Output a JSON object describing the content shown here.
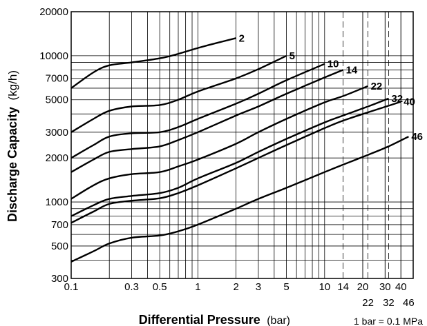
{
  "chart_data": {
    "type": "line",
    "x_scale": "log",
    "y_scale": "log",
    "xlim": [
      0.1,
      50
    ],
    "ylim": [
      300,
      20000
    ],
    "xlabel": "Differential Pressure",
    "xlabel_unit": "(bar)",
    "ylabel": "Discharge Capacity",
    "ylabel_unit": "(kg/h)",
    "note": "1 bar = 0.1 MPa",
    "grid": true,
    "x_ticks": [
      {
        "value": 0.1,
        "label": "0.1"
      },
      {
        "value": 0.3,
        "label": "0.3"
      },
      {
        "value": 0.5,
        "label": "0.5"
      },
      {
        "value": 1,
        "label": "1"
      },
      {
        "value": 2,
        "label": "2"
      },
      {
        "value": 3,
        "label": "3"
      },
      {
        "value": 5,
        "label": "5"
      },
      {
        "value": 10,
        "label": "10"
      },
      {
        "value": 14,
        "label": "14"
      },
      {
        "value": 20,
        "label": "20"
      },
      {
        "value": 30,
        "label": "30"
      },
      {
        "value": 40,
        "label": "40"
      }
    ],
    "x_ticks_lower": [
      {
        "value": 22,
        "label": "22"
      },
      {
        "value": 32,
        "label": "32"
      },
      {
        "value": 46,
        "label": "46"
      }
    ],
    "dashed_x_lines": [
      14,
      22,
      32
    ],
    "y_ticks": [
      {
        "value": 300,
        "label": "300"
      },
      {
        "value": 500,
        "label": "500"
      },
      {
        "value": 700,
        "label": "700"
      },
      {
        "value": 1000,
        "label": "1000"
      },
      {
        "value": 2000,
        "label": "2000"
      },
      {
        "value": 3000,
        "label": "3000"
      },
      {
        "value": 5000,
        "label": "5000"
      },
      {
        "value": 7000,
        "label": "7000"
      },
      {
        "value": 10000,
        "label": "10000"
      },
      {
        "value": 20000,
        "label": "20000"
      }
    ],
    "series": [
      {
        "name": "2",
        "points": [
          [
            0.1,
            6000
          ],
          [
            0.15,
            7700
          ],
          [
            0.2,
            8600
          ],
          [
            0.3,
            9000
          ],
          [
            0.5,
            9600
          ],
          [
            0.7,
            10300
          ],
          [
            1,
            11300
          ],
          [
            1.5,
            12400
          ],
          [
            2,
            13200
          ]
        ]
      },
      {
        "name": "5",
        "points": [
          [
            0.1,
            3000
          ],
          [
            0.15,
            3700
          ],
          [
            0.2,
            4200
          ],
          [
            0.3,
            4500
          ],
          [
            0.5,
            4600
          ],
          [
            0.7,
            5000
          ],
          [
            1,
            5700
          ],
          [
            2,
            7000
          ],
          [
            3,
            8100
          ],
          [
            5,
            10000
          ]
        ]
      },
      {
        "name": "10",
        "points": [
          [
            0.1,
            2000
          ],
          [
            0.15,
            2450
          ],
          [
            0.2,
            2800
          ],
          [
            0.3,
            2950
          ],
          [
            0.5,
            3000
          ],
          [
            0.7,
            3250
          ],
          [
            1,
            3700
          ],
          [
            2,
            4700
          ],
          [
            3,
            5500
          ],
          [
            5,
            6800
          ],
          [
            10,
            8800
          ]
        ]
      },
      {
        "name": "14",
        "points": [
          [
            0.1,
            1600
          ],
          [
            0.15,
            1950
          ],
          [
            0.2,
            2200
          ],
          [
            0.3,
            2300
          ],
          [
            0.5,
            2400
          ],
          [
            0.7,
            2650
          ],
          [
            1,
            3000
          ],
          [
            2,
            3900
          ],
          [
            3,
            4500
          ],
          [
            5,
            5500
          ],
          [
            10,
            7100
          ],
          [
            14,
            8000
          ]
        ]
      },
      {
        "name": "22",
        "points": [
          [
            0.1,
            1050
          ],
          [
            0.15,
            1300
          ],
          [
            0.2,
            1450
          ],
          [
            0.3,
            1550
          ],
          [
            0.5,
            1600
          ],
          [
            0.7,
            1750
          ],
          [
            1,
            1950
          ],
          [
            2,
            2500
          ],
          [
            3,
            3000
          ],
          [
            5,
            3700
          ],
          [
            10,
            4800
          ],
          [
            14,
            5300
          ],
          [
            22,
            6200
          ]
        ]
      },
      {
        "name": "32",
        "points": [
          [
            0.1,
            800
          ],
          [
            0.15,
            950
          ],
          [
            0.2,
            1050
          ],
          [
            0.3,
            1100
          ],
          [
            0.5,
            1150
          ],
          [
            0.7,
            1250
          ],
          [
            1,
            1450
          ],
          [
            2,
            1850
          ],
          [
            3,
            2200
          ],
          [
            5,
            2700
          ],
          [
            10,
            3500
          ],
          [
            14,
            3900
          ],
          [
            22,
            4500
          ],
          [
            32,
            5100
          ]
        ]
      },
      {
        "name": "40",
        "points": [
          [
            0.1,
            720
          ],
          [
            0.15,
            860
          ],
          [
            0.2,
            970
          ],
          [
            0.3,
            1020
          ],
          [
            0.5,
            1060
          ],
          [
            0.7,
            1150
          ],
          [
            1,
            1300
          ],
          [
            2,
            1700
          ],
          [
            3,
            2000
          ],
          [
            5,
            2450
          ],
          [
            10,
            3200
          ],
          [
            14,
            3600
          ],
          [
            22,
            4100
          ],
          [
            32,
            4550
          ],
          [
            40,
            4850
          ]
        ]
      },
      {
        "name": "46",
        "points": [
          [
            0.1,
            390
          ],
          [
            0.15,
            460
          ],
          [
            0.2,
            520
          ],
          [
            0.3,
            570
          ],
          [
            0.5,
            590
          ],
          [
            0.7,
            630
          ],
          [
            1,
            700
          ],
          [
            2,
            900
          ],
          [
            3,
            1050
          ],
          [
            5,
            1250
          ],
          [
            10,
            1600
          ],
          [
            14,
            1800
          ],
          [
            22,
            2100
          ],
          [
            32,
            2400
          ],
          [
            46,
            2800
          ]
        ]
      }
    ]
  }
}
